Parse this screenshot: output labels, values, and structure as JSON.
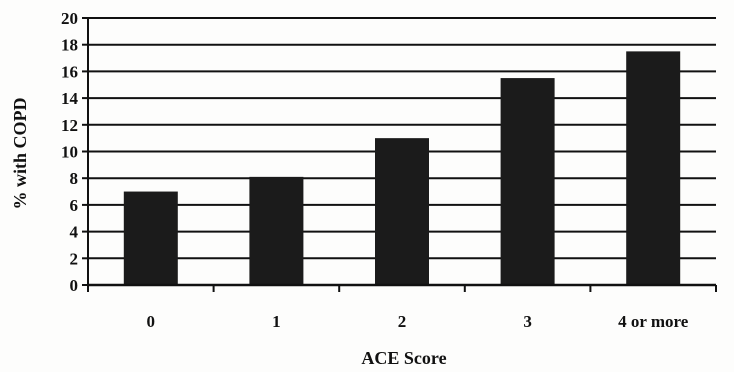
{
  "chart_data": {
    "type": "bar",
    "categories": [
      "0",
      "1",
      "2",
      "3",
      "4 or more"
    ],
    "values": [
      7.0,
      8.1,
      11.0,
      15.5,
      17.5
    ],
    "title": "",
    "xlabel": "ACE Score",
    "ylabel": "% with COPD",
    "ylim": [
      0,
      20
    ],
    "yticks": [
      0,
      2,
      4,
      6,
      8,
      10,
      12,
      14,
      16,
      18,
      20
    ],
    "grid": true,
    "legend": "none",
    "colors": {
      "bar": "#1b1b1b",
      "grid": "#111111",
      "axis": "#111111",
      "text": "#111111"
    }
  }
}
